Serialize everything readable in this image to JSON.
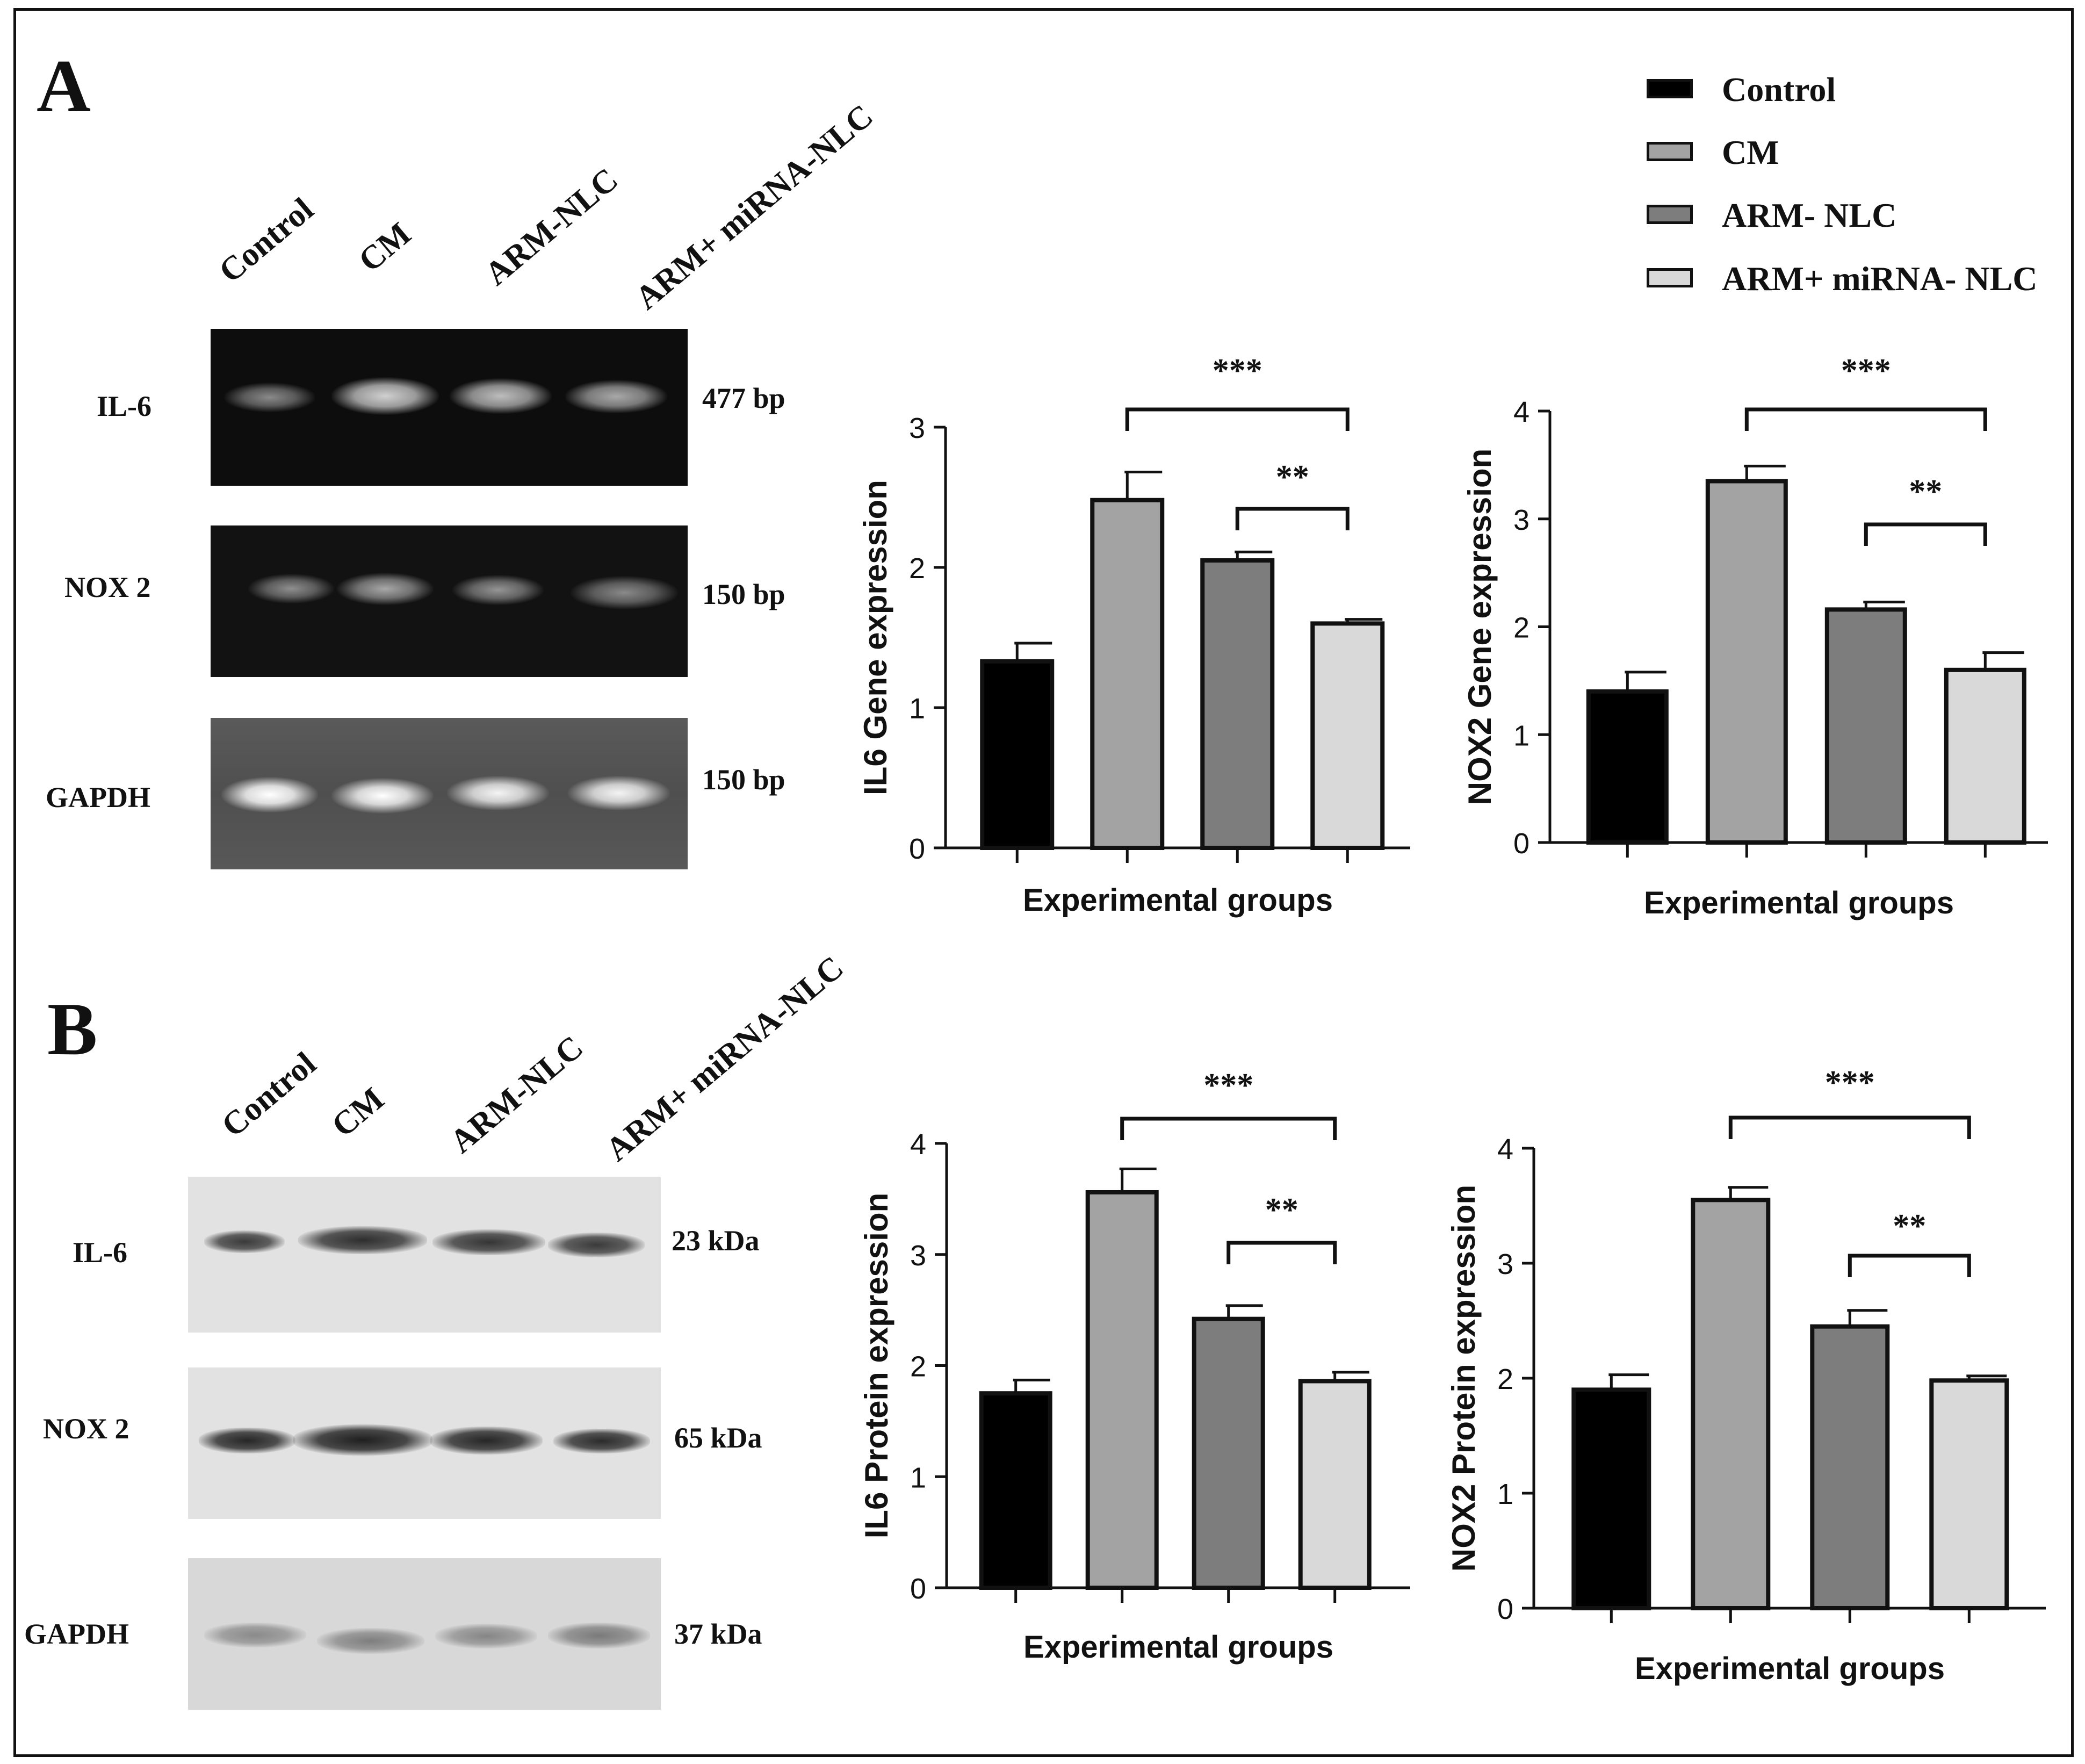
{
  "panels": {
    "A": {
      "letter": "A",
      "lanes": [
        "Control",
        "CM",
        "ARM-NLC",
        "ARM+ miRNA-NLC"
      ],
      "rows": [
        {
          "name": "IL-6",
          "size": "477 bp"
        },
        {
          "name": "NOX 2",
          "size": "150 bp"
        },
        {
          "name": "GAPDH",
          "size": "150 bp"
        }
      ]
    },
    "B": {
      "letter": "B",
      "lanes": [
        "Control",
        "CM",
        "ARM-NLC",
        "ARM+ miRNA-NLC"
      ],
      "rows": [
        {
          "name": "IL-6",
          "size": "23 kDa"
        },
        {
          "name": "NOX 2",
          "size": "65 kDa"
        },
        {
          "name": "GAPDH",
          "size": "37 kDa"
        }
      ]
    }
  },
  "legend": {
    "items": [
      {
        "label": "Control",
        "color": "#000000"
      },
      {
        "label": "CM",
        "color": "#a3a3a3"
      },
      {
        "label": "ARM- NLC",
        "color": "#7d7d7d"
      },
      {
        "label": "ARM+ miRNA- NLC",
        "color": "#d9d9d9"
      }
    ]
  },
  "chart_data": [
    {
      "type": "bar",
      "ylabel": "IL6 Gene expression",
      "xlabel": "Experimental groups",
      "ylim": [
        0,
        3
      ],
      "yticks": [
        0,
        1,
        2,
        3
      ],
      "values": [
        1.33,
        2.48,
        2.05,
        1.6
      ],
      "errors": [
        0.13,
        0.2,
        0.06,
        0.03
      ],
      "colors": [
        "#000000",
        "#a3a3a3",
        "#7d7d7d",
        "#d9d9d9"
      ],
      "significance": [
        {
          "from": 1,
          "to": 3,
          "label": "***"
        },
        {
          "from": 2,
          "to": 3,
          "label": "**"
        }
      ]
    },
    {
      "type": "bar",
      "ylabel": "NOX2 Gene expression",
      "xlabel": "Experimental groups",
      "ylim": [
        0,
        4
      ],
      "yticks": [
        0,
        1,
        2,
        3,
        4
      ],
      "values": [
        1.4,
        3.35,
        2.16,
        1.6
      ],
      "errors": [
        0.18,
        0.14,
        0.07,
        0.16
      ],
      "colors": [
        "#000000",
        "#a3a3a3",
        "#7d7d7d",
        "#d9d9d9"
      ],
      "significance": [
        {
          "from": 1,
          "to": 3,
          "label": "***"
        },
        {
          "from": 2,
          "to": 3,
          "label": "**"
        }
      ]
    },
    {
      "type": "bar",
      "ylabel": "IL6 Protein expression",
      "xlabel": "Experimental groups",
      "ylim": [
        0,
        4
      ],
      "yticks": [
        0,
        1,
        2,
        3,
        4
      ],
      "values": [
        1.75,
        3.56,
        2.42,
        1.86
      ],
      "errors": [
        0.12,
        0.21,
        0.12,
        0.08
      ],
      "colors": [
        "#000000",
        "#a3a3a3",
        "#7d7d7d",
        "#d9d9d9"
      ],
      "significance": [
        {
          "from": 1,
          "to": 3,
          "label": "***"
        },
        {
          "from": 2,
          "to": 3,
          "label": "**"
        }
      ]
    },
    {
      "type": "bar",
      "ylabel": "NOX2 Protein expression",
      "xlabel": "Experimental groups",
      "ylim": [
        0,
        4
      ],
      "yticks": [
        0,
        1,
        2,
        3,
        4
      ],
      "values": [
        1.9,
        3.55,
        2.45,
        1.98
      ],
      "errors": [
        0.13,
        0.11,
        0.14,
        0.04
      ],
      "colors": [
        "#000000",
        "#a3a3a3",
        "#7d7d7d",
        "#d9d9d9"
      ],
      "significance": [
        {
          "from": 1,
          "to": 3,
          "label": "***"
        },
        {
          "from": 2,
          "to": 3,
          "label": "**"
        }
      ]
    }
  ]
}
